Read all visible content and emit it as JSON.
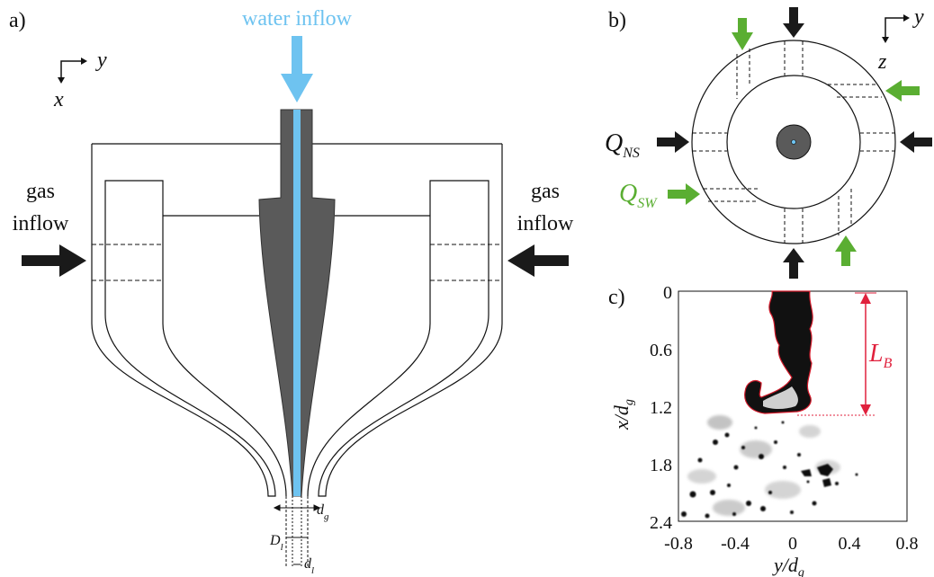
{
  "panels": {
    "a": {
      "tag": "a)",
      "axis_x": "x",
      "axis_y": "y",
      "water_label": "water inflow",
      "gas_left": [
        "gas",
        "inflow"
      ],
      "gas_right": [
        "gas",
        "inflow"
      ],
      "dim_dg": "d",
      "dim_dg_sub": "g",
      "dim_Dl": "D",
      "dim_Dl_sub": "l",
      "dim_dl": "d",
      "dim_dl_sub": "l"
    },
    "b": {
      "tag": "b)",
      "axis_y": "y",
      "axis_z": "z",
      "qns": "Q",
      "qns_sub": "NS",
      "qsw": "Q",
      "qsw_sub": "SW"
    },
    "c": {
      "tag": "c)",
      "lb": "L",
      "lb_sub": "B",
      "xlabel_main": "y/d",
      "xlabel_sub": "g",
      "ylabel_main": "x/d",
      "ylabel_sub": "g",
      "xticks": [
        "-0.8",
        "-0.4",
        "0",
        "0.4",
        "0.8"
      ],
      "yticks": [
        "0",
        "0.6",
        "1.2",
        "1.8",
        "2.4"
      ]
    }
  },
  "colors": {
    "water": "#6ec3f0",
    "nozzle": "#5a5a5a",
    "gas_arrow": "#1a1a1a",
    "swirl_arrow": "#5aae32",
    "lb": "#e0213d"
  }
}
